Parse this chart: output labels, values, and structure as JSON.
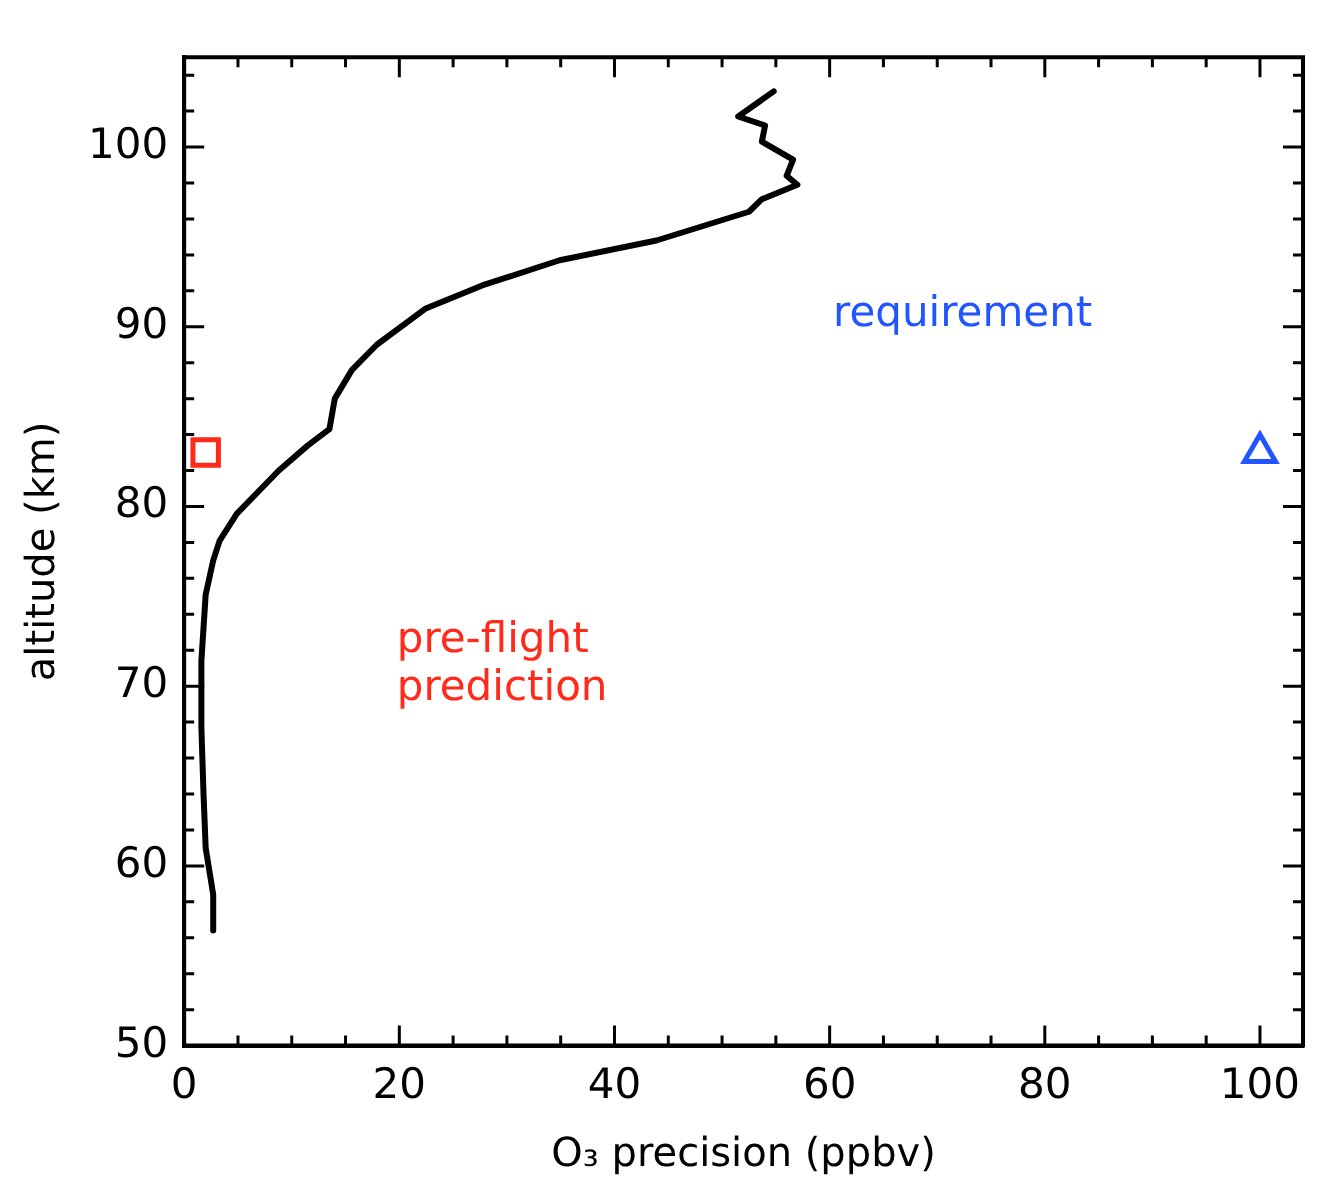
{
  "chart_data": {
    "type": "line",
    "xlabel": "O₃ precision (ppbv)",
    "ylabel": "altitude (km)",
    "xlim": [
      0,
      104
    ],
    "ylim": [
      50,
      105
    ],
    "xticks": [
      0,
      {
        "value": 5,
        "label": null
      },
      {
        "value": 10,
        "label": null
      },
      {
        "value": 15,
        "label": null
      },
      20,
      {
        "value": 25,
        "label": null
      },
      {
        "value": 30,
        "label": null
      },
      {
        "value": 35,
        "label": null
      },
      40,
      {
        "value": 45,
        "label": null
      },
      {
        "value": 50,
        "label": null
      },
      {
        "value": 55,
        "label": null
      },
      60,
      {
        "value": 65,
        "label": null
      },
      {
        "value": 70,
        "label": null
      },
      {
        "value": 75,
        "label": null
      },
      80,
      {
        "value": 85,
        "label": null
      },
      {
        "value": 90,
        "label": null
      },
      {
        "value": 95,
        "label": null
      },
      100
    ],
    "yticks": [
      50,
      {
        "value": 52,
        "label": null
      },
      {
        "value": 54,
        "label": null
      },
      {
        "value": 56,
        "label": null
      },
      {
        "value": 58,
        "label": null
      },
      60,
      {
        "value": 62,
        "label": null
      },
      {
        "value": 64,
        "label": null
      },
      {
        "value": 66,
        "label": null
      },
      {
        "value": 68,
        "label": null
      },
      70,
      {
        "value": 72,
        "label": null
      },
      {
        "value": 74,
        "label": null
      },
      {
        "value": 76,
        "label": null
      },
      {
        "value": 78,
        "label": null
      },
      80,
      {
        "value": 82,
        "label": null
      },
      {
        "value": 84,
        "label": null
      },
      {
        "value": 86,
        "label": null
      },
      {
        "value": 88,
        "label": null
      },
      90,
      {
        "value": 92,
        "label": null
      },
      {
        "value": 94,
        "label": null
      },
      {
        "value": 96,
        "label": null
      },
      {
        "value": 98,
        "label": null
      },
      100,
      {
        "value": 102,
        "label": null
      },
      {
        "value": 104,
        "label": null
      }
    ],
    "grid": false,
    "legend": false,
    "line_style": "solid",
    "marker": "none",
    "series": [
      {
        "color": "#000000",
        "x": [
          54.8,
          51.5,
          54.0,
          53.7,
          56.6,
          56.0,
          57.0,
          53.7,
          52.5,
          43.9,
          34.9,
          27.7,
          22.4,
          17.9,
          15.6,
          14.0,
          13.5,
          11.5,
          8.8,
          4.9,
          3.3,
          2.7,
          2.0,
          1.6,
          1.6,
          1.8,
          2.0,
          2.7,
          2.7
        ],
        "values": [
          103.1,
          101.7,
          101.2,
          100.3,
          99.3,
          98.4,
          97.9,
          97.1,
          96.4,
          94.8,
          93.7,
          92.3,
          91.0,
          89.0,
          87.6,
          86.0,
          84.3,
          83.4,
          82.0,
          79.6,
          78.1,
          77.0,
          75.1,
          71.4,
          67.7,
          64.0,
          61.0,
          58.4,
          56.4
        ]
      },
      {
        "name": "pre-flight prediction",
        "type": "scatter",
        "marker": "square",
        "color": "#ff2a1a",
        "x": [
          2
        ],
        "values": [
          83
        ]
      },
      {
        "name": "requirement",
        "type": "scatter",
        "marker": "triangle",
        "color": "#2255ff",
        "x": [
          100
        ],
        "values": [
          83
        ]
      }
    ]
  }
}
